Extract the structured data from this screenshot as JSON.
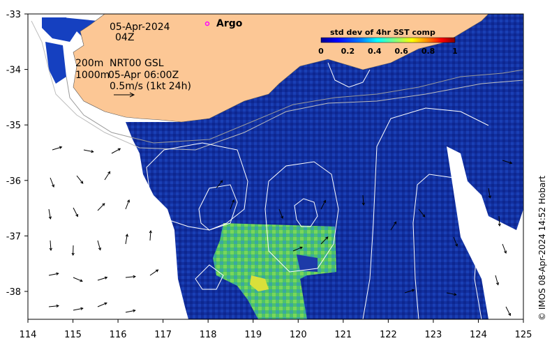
{
  "map": {
    "date_label": "05-Apr-2024",
    "time_label": "04Z",
    "legend_argo": "Argo",
    "isobath_200": "200m",
    "isobath_1000": "1000m",
    "product_label": "NRT00 GSL",
    "valid_time": "05-Apr 06:00Z",
    "vector_scale": "0.5m/s (1kt 24h)",
    "colorbar": {
      "title": "std dev of 4hr SST comp",
      "ticks": [
        "0",
        "0.2",
        "0.4",
        "0.6",
        "0.8",
        "1"
      ],
      "range": [
        0,
        1
      ],
      "colormap": [
        "#00008f",
        "#0000ff",
        "#0080ff",
        "#00ffff",
        "#80ff80",
        "#ffff00",
        "#ff8000",
        "#ff0000",
        "#800000"
      ]
    },
    "x_ticks": [
      "114",
      "115",
      "116",
      "117",
      "118",
      "119",
      "120",
      "121",
      "122",
      "123",
      "124",
      "125"
    ],
    "y_ticks": [
      "-33",
      "-34",
      "-35",
      "-36",
      "-37",
      "-38"
    ],
    "lon_range": [
      114,
      125
    ],
    "lat_range": [
      -38.5,
      -33
    ],
    "credit": "© IMOS 08-Apr-2024 14:52 Hobart",
    "colors": {
      "land": "#fcc795",
      "ocean_low": "#0f2a9a",
      "ocean_mid": "#1a4fd0",
      "patch_green": "#59c964",
      "argo": "#ff00ff"
    }
  }
}
